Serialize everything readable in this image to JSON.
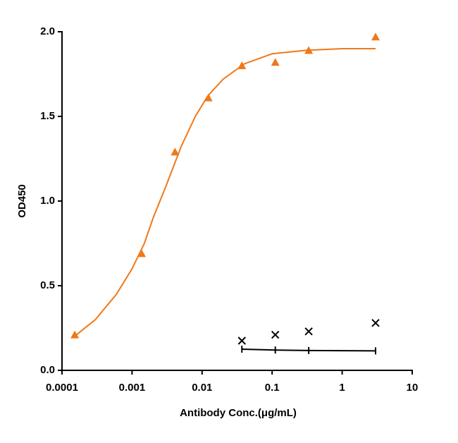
{
  "chart_data": {
    "type": "scatter",
    "xlabel": "Antibody Conc.(μg/mL)",
    "ylabel": "OD450",
    "log_x": true,
    "xlim": [
      0.0001,
      10
    ],
    "xticks": [
      0.0001,
      0.001,
      0.01,
      0.1,
      1,
      10
    ],
    "ylim": [
      0,
      2
    ],
    "yticks": [
      {
        "value": 0,
        "label": "0.0"
      },
      0.5,
      {
        "value": 1,
        "label": "1.0"
      },
      1.5,
      {
        "value": 2,
        "label": "2.0"
      }
    ],
    "series": [
      {
        "color": "#f07818",
        "marker": "none",
        "line": true,
        "x": [
          0.00015,
          0.0003,
          0.0006,
          0.001,
          0.0015,
          0.002,
          0.003,
          0.005,
          0.008,
          0.012,
          0.02,
          0.04,
          0.1,
          0.3,
          1,
          3
        ],
        "values": [
          0.2,
          0.3,
          0.45,
          0.6,
          0.75,
          0.9,
          1.08,
          1.32,
          1.5,
          1.62,
          1.72,
          1.81,
          1.87,
          1.89,
          1.9,
          1.9
        ]
      },
      {
        "color": "#f07818",
        "marker": "triangle",
        "line": false,
        "x": [
          0.000152,
          0.00137,
          0.0041,
          0.0123,
          0.037,
          0.111,
          0.333,
          3
        ],
        "values": [
          0.21,
          0.69,
          1.29,
          1.61,
          1.8,
          1.82,
          1.89,
          1.97
        ]
      },
      {
        "color": "#000000",
        "marker": "x",
        "line": false,
        "x": [
          0.037,
          0.111,
          0.333,
          3
        ],
        "values": [
          0.175,
          0.21,
          0.23,
          0.28
        ]
      },
      {
        "color": "#000000",
        "marker": "tick",
        "line": true,
        "x": [
          0.037,
          0.111,
          0.333,
          3
        ],
        "values": [
          0.125,
          0.12,
          0.117,
          0.115
        ]
      }
    ]
  }
}
